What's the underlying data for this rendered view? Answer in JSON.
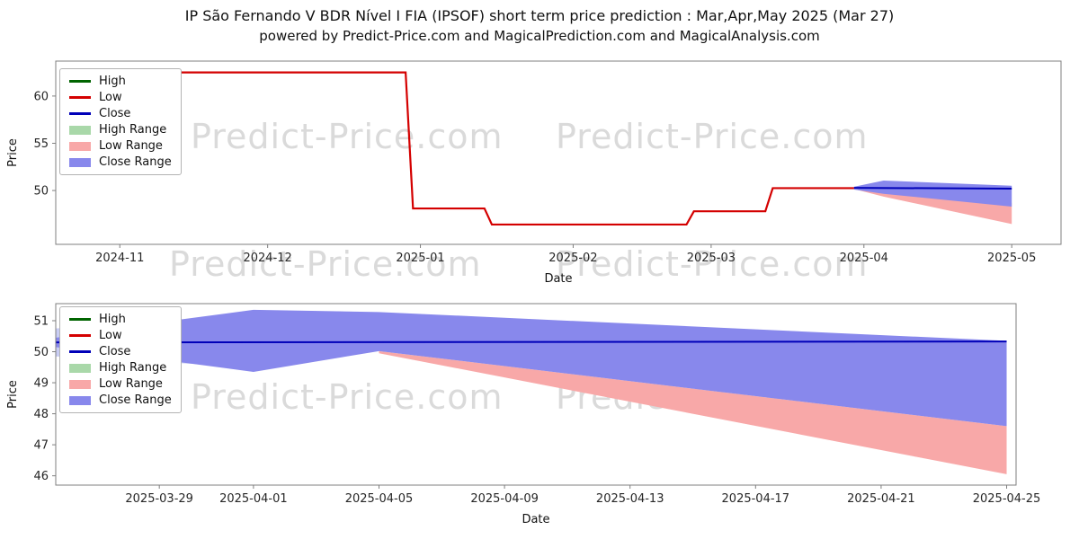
{
  "title": "IP São Fernando V BDR Nível I FIA (IPSOF) short term price prediction : Mar,Apr,May 2025 (Mar 27)",
  "subtitle": "powered by Predict-Price.com and MagicalPrediction.com and MagicalAnalysis.com",
  "watermark": "Predict-Price.com",
  "legend": {
    "items": [
      {
        "label": "High",
        "color": "#006400",
        "type": "line"
      },
      {
        "label": "Low",
        "color": "#d40000",
        "type": "line"
      },
      {
        "label": "Close",
        "color": "#0000b8",
        "type": "line"
      },
      {
        "label": "High Range",
        "color": "#a9d8a9",
        "type": "band"
      },
      {
        "label": "Low Range",
        "color": "#f8a8a8",
        "type": "band"
      },
      {
        "label": "Close Range",
        "color": "#8888ec",
        "type": "band"
      }
    ]
  },
  "chart_data": [
    {
      "type": "line",
      "name": "historical-and-prediction",
      "xlabel": "Date",
      "ylabel": "Price",
      "x_unit": "days since 2024-10-19",
      "xlim": [
        0,
        204
      ],
      "ylim": [
        44.3,
        63.7
      ],
      "yticks": [
        50,
        55,
        60
      ],
      "xticks": [
        {
          "pos": 13,
          "label": "2024-11"
        },
        {
          "pos": 43,
          "label": "2024-12"
        },
        {
          "pos": 74,
          "label": "2025-01"
        },
        {
          "pos": 105,
          "label": "2025-02"
        },
        {
          "pos": 133,
          "label": "2025-03"
        },
        {
          "pos": 164,
          "label": "2025-04"
        },
        {
          "pos": 194,
          "label": "2025-05"
        }
      ],
      "series": [
        {
          "name": "Low",
          "color": "#d40000",
          "width": 2.2,
          "points": [
            [
              2,
              62.5
            ],
            [
              71,
              62.5
            ],
            [
              72.5,
              48.1
            ],
            [
              87,
              48.1
            ],
            [
              88.5,
              46.4
            ],
            [
              128,
              46.4
            ],
            [
              129.5,
              47.8
            ],
            [
              144,
              47.8
            ],
            [
              145.5,
              50.25
            ],
            [
              162,
              50.25
            ]
          ]
        },
        {
          "name": "Close",
          "color": "#0000b8",
          "width": 2,
          "points": [
            [
              162,
              50.28
            ],
            [
              194,
              50.2
            ]
          ]
        }
      ],
      "bands": [
        {
          "name": "Low Range",
          "color": "#f8a8a8",
          "points": [
            [
              162,
              50.3,
              50.15
            ],
            [
              168,
              50.2,
              49.35
            ],
            [
              194,
              48.7,
              46.45
            ]
          ]
        },
        {
          "name": "Close Range",
          "color": "#8888ec",
          "points": [
            [
              162,
              50.4,
              50.1
            ],
            [
              168,
              51.05,
              49.65
            ],
            [
              194,
              50.5,
              48.3
            ]
          ]
        }
      ]
    },
    {
      "type": "line",
      "name": "short-term-prediction-detail",
      "xlabel": "Date",
      "ylabel": "Price",
      "x_unit": "days since 2025-03-26",
      "xlim": [
        -0.3,
        30.3
      ],
      "ylim": [
        45.7,
        51.55
      ],
      "yticks": [
        46,
        47,
        48,
        49,
        50,
        51
      ],
      "xticks": [
        {
          "pos": 3,
          "label": "2025-03-29"
        },
        {
          "pos": 6,
          "label": "2025-04-01"
        },
        {
          "pos": 10,
          "label": "2025-04-05"
        },
        {
          "pos": 14,
          "label": "2025-04-09"
        },
        {
          "pos": 18,
          "label": "2025-04-13"
        },
        {
          "pos": 22,
          "label": "2025-04-17"
        },
        {
          "pos": 26,
          "label": "2025-04-21"
        },
        {
          "pos": 30,
          "label": "2025-04-25"
        }
      ],
      "series": [
        {
          "name": "Close",
          "color": "#0000b8",
          "width": 2,
          "points": [
            [
              -0.3,
              50.3
            ],
            [
              30,
              50.33
            ]
          ]
        }
      ],
      "bands": [
        {
          "name": "Low Range",
          "color": "#f8a8a8",
          "points": [
            [
              10,
              50.02,
              49.95
            ],
            [
              30,
              47.6,
              46.05
            ]
          ]
        },
        {
          "name": "Close Range light",
          "color": "#c9cdf4",
          "points": [
            [
              -0.3,
              50.75,
              49.85
            ],
            [
              6,
              51.2,
              49.5
            ]
          ]
        },
        {
          "name": "Close Range",
          "color": "#8888ec",
          "points": [
            [
              -0.3,
              50.45,
              50.15
            ],
            [
              3,
              50.95,
              49.75
            ],
            [
              6,
              51.35,
              49.35
            ],
            [
              10,
              51.28,
              50.02
            ],
            [
              30,
              50.35,
              47.6
            ]
          ]
        }
      ]
    }
  ]
}
